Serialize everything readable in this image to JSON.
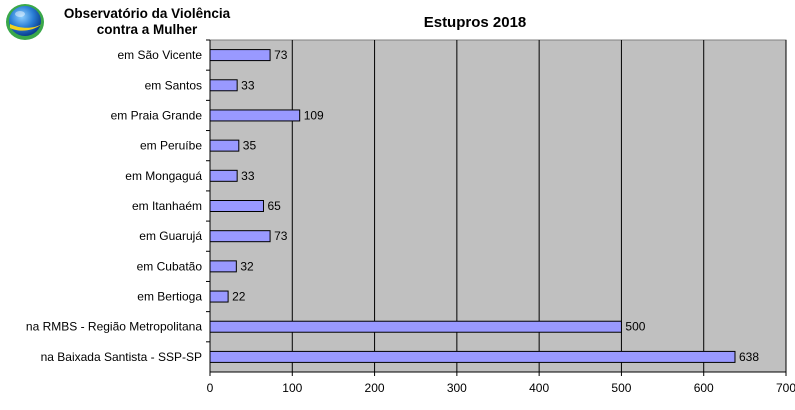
{
  "header": {
    "org_line1": "Observatório da Violência",
    "org_line2": "contra a Mulher",
    "logo_icon": "globe-logo-icon"
  },
  "colors": {
    "plot_background": "#c0c0c0",
    "bar_fill": "#9999ff",
    "bar_stroke": "#000000",
    "gridline": "#000000"
  },
  "chart_data": {
    "type": "bar",
    "orientation": "horizontal",
    "title": "Estupros 2018",
    "xlabel": "",
    "ylabel": "",
    "categories": [
      "em São Vicente",
      "em Santos",
      "em Praia Grande",
      "em Peruíbe",
      "em Mongaguá",
      "em Itanhaém",
      "em Guarujá",
      "em Cubatão",
      "em Bertioga",
      "na RMBS - Região Metropolitana",
      "na Baixada Santista - SSP-SP"
    ],
    "values": [
      73,
      33,
      109,
      35,
      33,
      65,
      73,
      32,
      22,
      500,
      638
    ],
    "xlim": [
      0,
      700
    ],
    "xticks": [
      0,
      100,
      200,
      300,
      400,
      500,
      600,
      700
    ],
    "grid": true,
    "legend": "none",
    "data_labels": true
  }
}
